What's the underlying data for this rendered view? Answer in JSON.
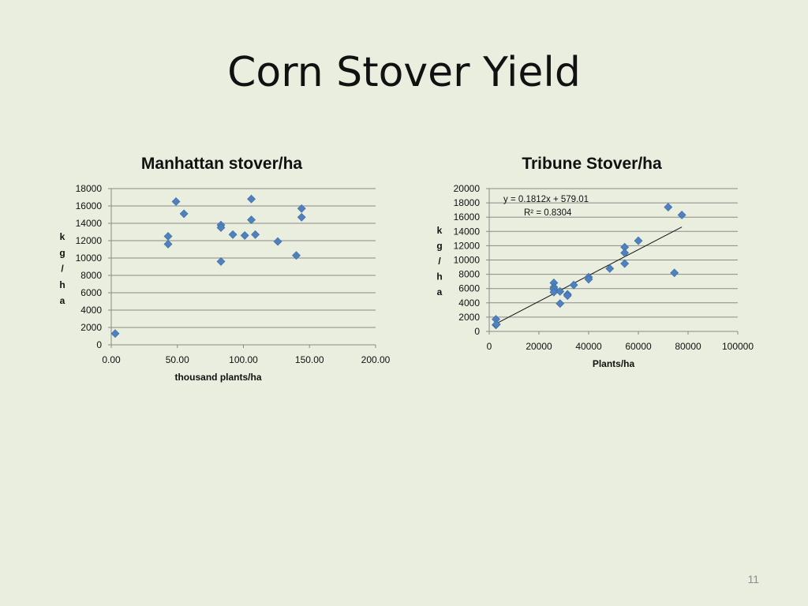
{
  "slide": {
    "title": "Corn Stover Yield",
    "page_number": "11"
  },
  "colors": {
    "background": "#eaeedf",
    "marker": "#4f81bd"
  },
  "chart_data": [
    {
      "type": "scatter",
      "title": "Manhattan stover/ha",
      "xlabel": "thousand plants/ha",
      "ylabel": "kg/ha",
      "ylabel_chars": [
        "k",
        "g",
        "/",
        "h",
        "a"
      ],
      "xlim": [
        0,
        200
      ],
      "ylim": [
        0,
        18000
      ],
      "xticks": [
        "0.00",
        "50.00",
        "100.00",
        "150.00",
        "200.00"
      ],
      "yticks": [
        "0",
        "2000",
        "4000",
        "6000",
        "8000",
        "10000",
        "12000",
        "14000",
        "16000",
        "18000"
      ],
      "grid": true,
      "marker": "diamond",
      "points": [
        [
          3,
          1300
        ],
        [
          43,
          12500
        ],
        [
          43,
          11600
        ],
        [
          49,
          16500
        ],
        [
          55,
          15100
        ],
        [
          83,
          13800
        ],
        [
          83,
          13500
        ],
        [
          83,
          9600
        ],
        [
          92,
          12700
        ],
        [
          101,
          12600
        ],
        [
          106,
          16800
        ],
        [
          106,
          14400
        ],
        [
          109,
          12700
        ],
        [
          126,
          11900
        ],
        [
          140,
          10300
        ],
        [
          144,
          15700
        ],
        [
          144,
          14700
        ]
      ]
    },
    {
      "type": "scatter",
      "title": "Tribune Stover/ha",
      "xlabel": "Plants/ha",
      "ylabel": "kg/ha",
      "ylabel_chars": [
        "k",
        "g",
        "/",
        "h",
        "a"
      ],
      "xlim": [
        0,
        100000
      ],
      "ylim": [
        0,
        20000
      ],
      "xticks": [
        "0",
        "20000",
        "40000",
        "60000",
        "80000",
        "100000"
      ],
      "yticks": [
        "0",
        "2000",
        "4000",
        "6000",
        "8000",
        "10000",
        "12000",
        "14000",
        "16000",
        "18000",
        "20000"
      ],
      "grid": true,
      "marker": "diamond",
      "trendline": {
        "slope": 0.1812,
        "intercept": 579.01,
        "x_range": [
          2700,
          77500
        ],
        "equation": "y = 0.1812x + 579.01",
        "r2_label": "R² = 0.8304"
      },
      "points": [
        [
          2700,
          1700
        ],
        [
          2700,
          900
        ],
        [
          2900,
          1000
        ],
        [
          26000,
          6800
        ],
        [
          26000,
          6200
        ],
        [
          26000,
          5900
        ],
        [
          26000,
          5500
        ],
        [
          28500,
          3900
        ],
        [
          28500,
          5600
        ],
        [
          31500,
          5200
        ],
        [
          31500,
          5000
        ],
        [
          34000,
          6500
        ],
        [
          40000,
          7600
        ],
        [
          40000,
          7300
        ],
        [
          48500,
          8800
        ],
        [
          54500,
          11800
        ],
        [
          54500,
          11000
        ],
        [
          54500,
          9500
        ],
        [
          60000,
          12700
        ],
        [
          72000,
          17400
        ],
        [
          74500,
          8200
        ],
        [
          77500,
          16300
        ]
      ]
    }
  ]
}
